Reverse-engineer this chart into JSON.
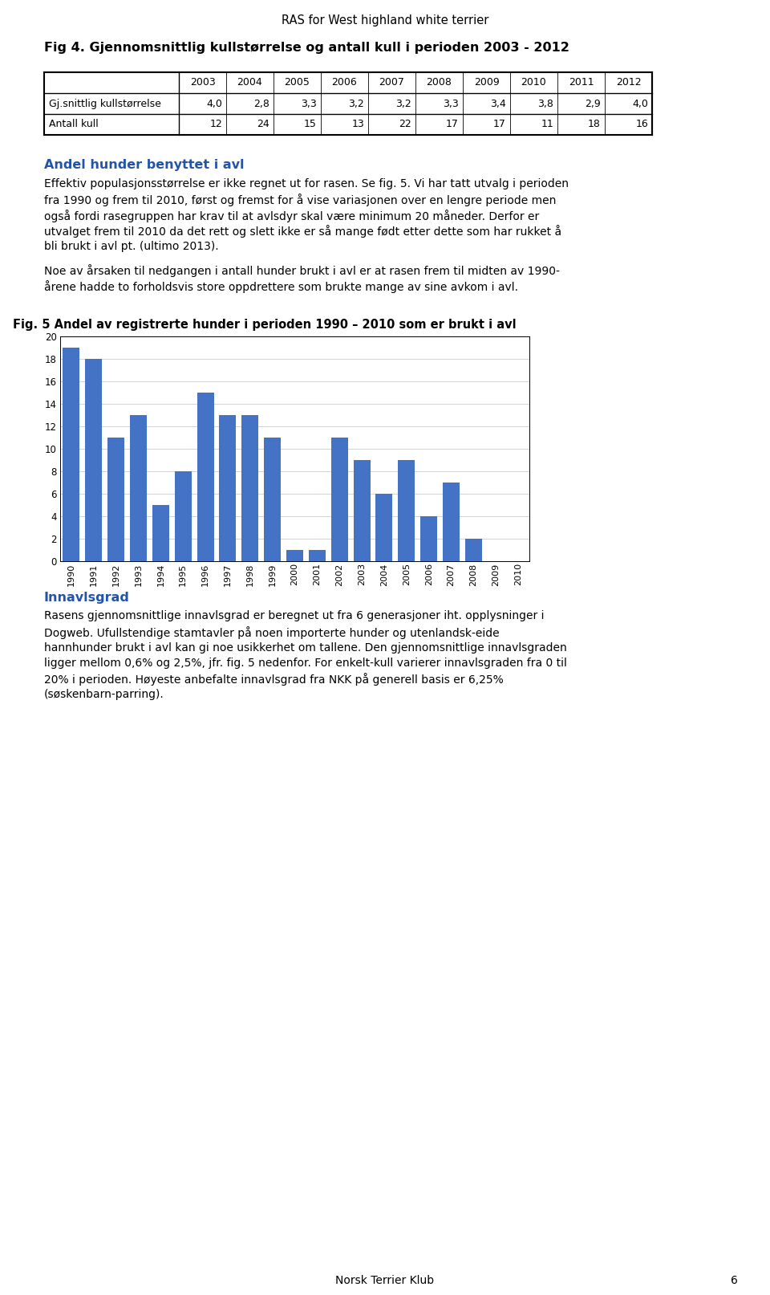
{
  "page_title": "RAS for West highland white terrier",
  "fig4_title": "Fig 4. Gjennomsnittlig kullstørrelse og antall kull i perioden 2003 - 2012",
  "table_years": [
    "2003",
    "2004",
    "2005",
    "2006",
    "2007",
    "2008",
    "2009",
    "2010",
    "2011",
    "2012"
  ],
  "row1_label": "Gj.snittlig kullstørrelse",
  "row1_values": [
    "4,0",
    "2,8",
    "3,3",
    "3,2",
    "3,2",
    "3,3",
    "3,4",
    "3,8",
    "2,9",
    "4,0"
  ],
  "row2_label": "Antall kull",
  "row2_values": [
    "12",
    "24",
    "15",
    "13",
    "22",
    "17",
    "17",
    "11",
    "18",
    "16"
  ],
  "section_title": "Andel hunder benyttet i avl",
  "section_text1_lines": [
    "Effektiv populasjonsstørrelse er ikke regnet ut for rasen. Se fig. 5. Vi har tatt utvalg i perioden",
    "fra 1990 og frem til 2010, først og fremst for å vise variasjonen over en lengre periode men",
    "også fordi rasegruppen har krav til at avlsdyr skal være minimum 20 måneder. Derfor er",
    "utvalget frem til 2010 da det rett og slett ikke er så mange født etter dette som har rukket å",
    "bli brukt i avl pt. (ultimo 2013)."
  ],
  "section_text2_lines": [
    "Noe av årsaken til nedgangen i antall hunder brukt i avl er at rasen frem til midten av 1990-",
    "årene hadde to forholdsvis store oppdrettere som brukte mange av sine avkom i avl."
  ],
  "fig5_title": "Fig. 5 Andel av registrerte hunder i perioden 1990 – 2010 som er brukt i avl",
  "bar_years": [
    1990,
    1991,
    1992,
    1993,
    1994,
    1995,
    1996,
    1997,
    1998,
    1999,
    2000,
    2001,
    2002,
    2003,
    2004,
    2005,
    2006,
    2007,
    2008,
    2009,
    2010
  ],
  "bar_values": [
    19,
    18,
    11,
    13,
    5,
    8,
    15,
    13,
    13,
    11,
    1,
    1,
    11,
    9,
    6,
    9,
    4,
    7,
    2,
    0,
    0
  ],
  "bar_color": "#4472C4",
  "ylim": [
    0,
    20
  ],
  "yticks": [
    0,
    2,
    4,
    6,
    8,
    10,
    12,
    14,
    16,
    18,
    20
  ],
  "section2_title": "Innavlsgrad",
  "section2_text_lines": [
    "Rasens gjennomsnittlige innavlsgrad er beregnet ut fra 6 generasjoner iht. opplysninger i",
    "Dogweb. Ufullstendige stamtavler på noen importerte hunder og utenlandsk-eide",
    "hannhunder brukt i avl kan gi noe usikkerhet om tallene. Den gjennomsnittlige innavlsgraden",
    "ligger mellom 0,6% og 2,5%, jfr. fig. 5 nedenfor. For enkelt-kull varierer innavlsgraden fra 0 til",
    "20% i perioden. Høyeste anbefalte innavlsgrad fra NKK på generell basis er 6,25%",
    "(søskenbarn-parring)."
  ],
  "footer": "Norsk Terrier Klub",
  "page_number": "6",
  "bg_color": "#ffffff"
}
